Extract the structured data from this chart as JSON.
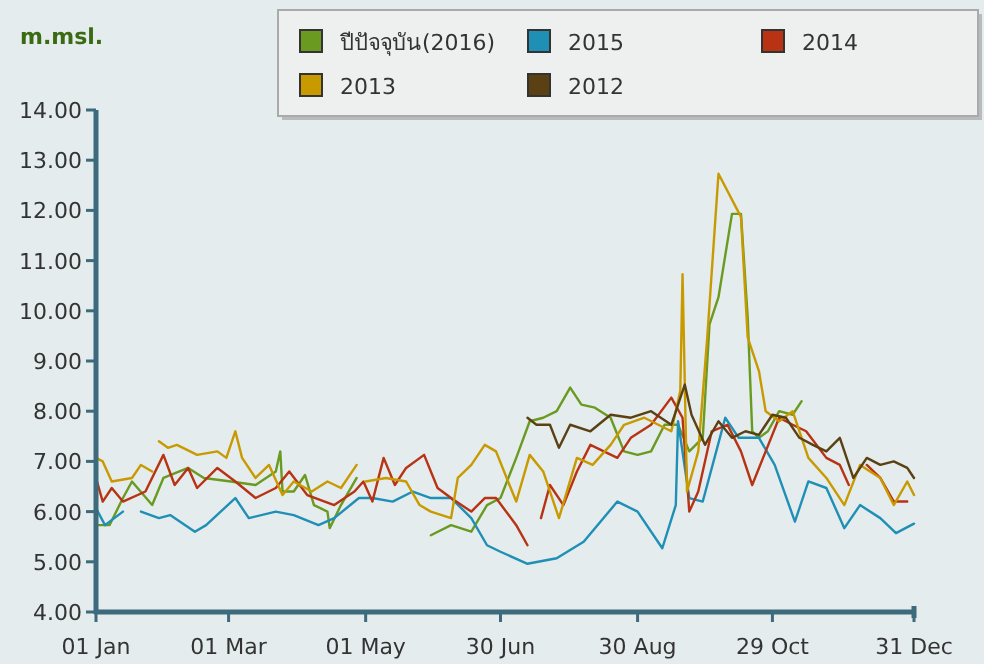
{
  "chart_data": {
    "type": "line",
    "ylabel": "m.msl.",
    "legend": "top",
    "grid": false,
    "marker": "none",
    "line_style": "solid",
    "xlim": [
      "--01-01",
      "--12-31"
    ],
    "xticks": [
      {
        "value": "--01-01",
        "label": "01 Jan"
      },
      {
        "value": "--03-01",
        "label": "01 Mar"
      },
      {
        "value": "--05-01",
        "label": "01 May"
      },
      {
        "value": "--06-30",
        "label": "30 Jun"
      },
      {
        "value": "--08-30",
        "label": "30 Aug"
      },
      {
        "value": "--10-29",
        "label": "29 Oct"
      },
      {
        "value": "--12-31",
        "label": "31 Dec"
      }
    ],
    "ylim": [
      4,
      14
    ],
    "yticks": [
      {
        "value": 4,
        "label": "4.00"
      },
      {
        "value": 5,
        "label": "5.00"
      },
      {
        "value": 6,
        "label": "6.00"
      },
      {
        "value": 7,
        "label": "7.00"
      },
      {
        "value": 8,
        "label": "8.00"
      },
      {
        "value": 9,
        "label": "9.00"
      },
      {
        "value": 10,
        "label": "10.00"
      },
      {
        "value": 11,
        "label": "11.00"
      },
      {
        "value": 12,
        "label": "12.00"
      },
      {
        "value": 13,
        "label": "13.00"
      },
      {
        "value": 14,
        "label": "14.00"
      }
    ],
    "series": [
      {
        "name": "ปีปัจจุบัน(2016)",
        "color": "#6a9a1f",
        "x": [
          "--01-01",
          "--01-07",
          "--01-13",
          "--01-17",
          "--01-26",
          "--01-31",
          "--02-11",
          "--02-18",
          "--03-02",
          "--03-13",
          "--03-22",
          "--03-24",
          "--03-25",
          "--03-30",
          "--04-04",
          "--04-08",
          "--04-14",
          "--04-15",
          "--04-20",
          "--04-27",
          "--05-10",
          "--05-30",
          "--06-08",
          "--06-17",
          "--06-24",
          "--06-30",
          "--07-07",
          "--07-13",
          "--07-19",
          "--07-25",
          "--07-31",
          "--08-05",
          "--08-11",
          "--08-18",
          "--08-24",
          "--08-30",
          "--09-05",
          "--09-11",
          "--09-17",
          "--09-22",
          "--09-28",
          "--10-01",
          "--10-05",
          "--10-11",
          "--10-15",
          "--10-18",
          "--10-20",
          "--10-23",
          "--10-27",
          "--11-01",
          "--11-07",
          "--11-11"
        ],
        "values": [
          5.73,
          5.73,
          6.27,
          6.6,
          6.13,
          6.67,
          6.87,
          6.67,
          6.6,
          6.53,
          6.8,
          7.2,
          6.4,
          6.4,
          6.73,
          6.13,
          6.0,
          5.67,
          6.13,
          6.67,
          null,
          5.53,
          5.73,
          5.6,
          6.13,
          6.27,
          7.07,
          7.8,
          7.87,
          8.0,
          8.47,
          8.13,
          8.07,
          7.87,
          7.2,
          7.13,
          7.2,
          7.73,
          7.73,
          7.2,
          7.47,
          9.73,
          10.27,
          11.93,
          11.93,
          9.87,
          7.6,
          7.47,
          7.6,
          8.0,
          7.93,
          8.2
        ]
      },
      {
        "name": "2015",
        "color": "#1f8fb5",
        "x": [
          "--01-01",
          "--01-05",
          "--01-13",
          "--01-17",
          "--01-21",
          "--01-29",
          "--02-03",
          "--02-14",
          "--02-19",
          "--03-04",
          "--03-10",
          "--03-22",
          "--03-30",
          "--04-10",
          "--04-17",
          "--04-28",
          "--05-04",
          "--05-13",
          "--05-22",
          "--05-30",
          "--06-08",
          "--06-17",
          "--06-24",
          "--06-30",
          "--07-12",
          "--07-25",
          "--08-06",
          "--08-21",
          "--08-30",
          "--09-10",
          "--09-16",
          "--09-17",
          "--09-22",
          "--09-28",
          "--10-04",
          "--10-08",
          "--10-14",
          "--10-23",
          "--10-30",
          "--11-08",
          "--11-14",
          "--11-22",
          "--11-30",
          "--12-07",
          "--12-16",
          "--12-23",
          "--12-31"
        ],
        "values": [
          6.07,
          5.73,
          6.0,
          null,
          6.0,
          5.87,
          5.93,
          5.6,
          5.73,
          6.27,
          5.87,
          6.0,
          5.93,
          5.73,
          5.87,
          6.27,
          6.27,
          6.2,
          6.4,
          6.27,
          6.27,
          5.87,
          5.33,
          5.2,
          4.96,
          5.07,
          5.4,
          6.2,
          6.0,
          5.27,
          6.13,
          7.8,
          6.27,
          6.2,
          7.2,
          7.87,
          7.47,
          7.47,
          6.93,
          5.8,
          6.6,
          6.47,
          5.67,
          6.13,
          5.87,
          5.57,
          5.76
        ]
      },
      {
        "name": "2014",
        "color": "#b83214",
        "x": [
          "--01-01",
          "--01-04",
          "--01-08",
          "--01-13",
          "--01-23",
          "--01-31",
          "--02-05",
          "--02-11",
          "--02-15",
          "--02-24",
          "--03-04",
          "--03-13",
          "--03-22",
          "--03-28",
          "--04-05",
          "--04-17",
          "--04-26",
          "--04-30",
          "--05-04",
          "--05-09",
          "--05-14",
          "--05-19",
          "--05-27",
          "--06-02",
          "--06-08",
          "--06-17",
          "--06-23",
          "--06-28",
          "--07-07",
          "--07-12",
          "--07-15",
          "--07-18",
          "--07-22",
          "--07-28",
          "--08-03",
          "--08-09",
          "--08-15",
          "--08-21",
          "--08-27",
          "--09-05",
          "--09-14",
          "--09-19",
          "--09-22",
          "--09-26",
          "--10-02",
          "--10-09",
          "--10-15",
          "--10-20",
          "--10-26",
          "--11-01",
          "--11-07",
          "--11-13",
          "--11-22",
          "--11-28",
          "--12-02",
          "--12-06",
          "--12-10",
          "--12-16",
          "--12-22",
          "--12-28"
        ],
        "values": [
          6.67,
          6.2,
          6.47,
          6.2,
          6.4,
          7.13,
          6.53,
          6.87,
          6.47,
          6.87,
          6.6,
          6.27,
          6.47,
          6.8,
          6.33,
          6.13,
          6.4,
          6.6,
          6.2,
          7.07,
          6.53,
          6.87,
          7.13,
          6.47,
          6.27,
          6.0,
          6.27,
          6.27,
          5.73,
          5.33,
          null,
          5.87,
          6.53,
          6.13,
          6.8,
          7.33,
          7.2,
          7.07,
          7.47,
          7.73,
          8.27,
          7.87,
          6.0,
          6.4,
          7.6,
          7.73,
          7.2,
          6.53,
          7.2,
          7.87,
          7.73,
          7.6,
          7.07,
          6.93,
          6.53,
          null,
          6.93,
          6.67,
          6.2,
          6.2
        ]
      },
      {
        "name": "2013",
        "color": "#c89a00",
        "x": [
          "--01-01",
          "--01-04",
          "--01-08",
          "--01-17",
          "--01-21",
          "--01-26",
          "--01-27",
          "--01-29",
          "--02-02",
          "--02-06",
          "--02-15",
          "--02-24",
          "--02-28",
          "--03-04",
          "--03-07",
          "--03-13",
          "--03-19",
          "--03-25",
          "--03-30",
          "--04-07",
          "--04-14",
          "--04-20",
          "--04-27",
          "--04-28",
          "--05-01",
          "--05-10",
          "--05-19",
          "--05-25",
          "--05-30",
          "--06-08",
          "--06-11",
          "--06-17",
          "--06-23",
          "--06-28",
          "--07-04",
          "--07-07",
          "--07-13",
          "--07-19",
          "--07-26",
          "--08-03",
          "--08-10",
          "--08-18",
          "--08-24",
          "--09-02",
          "--09-14",
          "--09-18",
          "--09-19",
          "--09-21",
          "--09-26",
          "--09-30",
          "--10-05",
          "--10-15",
          "--10-18",
          "--10-23",
          "--10-26",
          "--11-01",
          "--11-07",
          "--11-14",
          "--11-22",
          "--11-30",
          "--12-07",
          "--12-16",
          "--12-22",
          "--12-28",
          "--12-31"
        ],
        "values": [
          7.07,
          7.0,
          6.6,
          6.67,
          6.93,
          6.8,
          null,
          7.4,
          7.27,
          7.33,
          7.13,
          7.2,
          7.07,
          7.6,
          7.07,
          6.67,
          6.93,
          6.33,
          6.6,
          6.4,
          6.6,
          6.47,
          6.93,
          null,
          6.6,
          6.67,
          6.6,
          6.13,
          6.0,
          5.87,
          6.67,
          6.93,
          7.33,
          7.2,
          6.53,
          6.2,
          7.13,
          6.8,
          5.87,
          7.07,
          6.93,
          7.33,
          7.73,
          7.87,
          7.6,
          8.4,
          10.73,
          6.4,
          7.2,
          9.47,
          12.73,
          11.87,
          9.47,
          8.8,
          8.0,
          7.8,
          8.0,
          7.07,
          6.67,
          6.13,
          6.93,
          6.67,
          6.13,
          6.6,
          6.33
        ]
      },
      {
        "name": "2012",
        "color": "#5a4012",
        "x": [
          "--07-12",
          "--07-16",
          "--07-22",
          "--07-26",
          "--07-31",
          "--08-09",
          "--08-18",
          "--08-27",
          "--09-05",
          "--09-14",
          "--09-20",
          "--09-23",
          "--09-29",
          "--10-05",
          "--10-11",
          "--10-17",
          "--10-23",
          "--10-29",
          "--11-04",
          "--11-10",
          "--11-16",
          "--11-22",
          "--11-28",
          "--12-04",
          "--12-10",
          "--12-16",
          "--12-22",
          "--12-28",
          "--12-31"
        ],
        "values": [
          7.87,
          7.73,
          7.73,
          7.27,
          7.73,
          7.6,
          7.93,
          7.87,
          8.0,
          7.73,
          8.53,
          7.93,
          7.33,
          7.8,
          7.47,
          7.6,
          7.53,
          7.93,
          7.87,
          7.47,
          7.33,
          7.2,
          7.47,
          6.67,
          7.07,
          6.93,
          7.0,
          6.87,
          6.67
        ]
      }
    ]
  }
}
